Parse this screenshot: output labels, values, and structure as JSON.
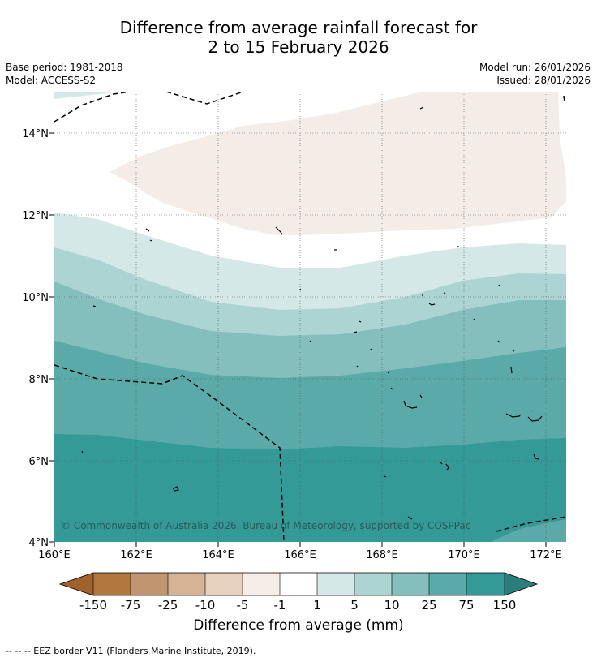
{
  "title_line1": "Difference from average rainfall forecast for",
  "title_line2": "2 to 15 February 2026",
  "base_period": "Base period: 1981-2018",
  "model": "Model: ACCESS-S2",
  "model_run": "Model run: 26/01/2026",
  "issued": "Issued: 28/01/2026",
  "map": {
    "lat_labels": [
      "14°N",
      "12°N",
      "10°N",
      "8°N",
      "6°N",
      "4°N"
    ],
    "lon_labels": [
      "160°E",
      "162°E",
      "164°E",
      "166°E",
      "168°E",
      "170°E",
      "172°E"
    ],
    "copyright": "© Commonwealth of Australia 2026, Bureau of Meteorology, supported by COSPPac"
  },
  "colorbar": {
    "title": "Difference from average (mm)",
    "ticks": [
      "-150",
      "-75",
      "-25",
      "-10",
      "-5",
      "-1",
      "1",
      "5",
      "10",
      "25",
      "75",
      "150"
    ],
    "colors": [
      "#a0622a",
      "#b1773f",
      "#c19570",
      "#d6b395",
      "#e6d1bf",
      "#f5ede7",
      "#ffffff",
      "#d5e8e8",
      "#acd4d3",
      "#84bfbe",
      "#5baaaa",
      "#339a98",
      "#2c7e7d"
    ]
  },
  "footer": "--  --  -- EEZ border V11 (Flanders Marine Institute, 2019)."
}
